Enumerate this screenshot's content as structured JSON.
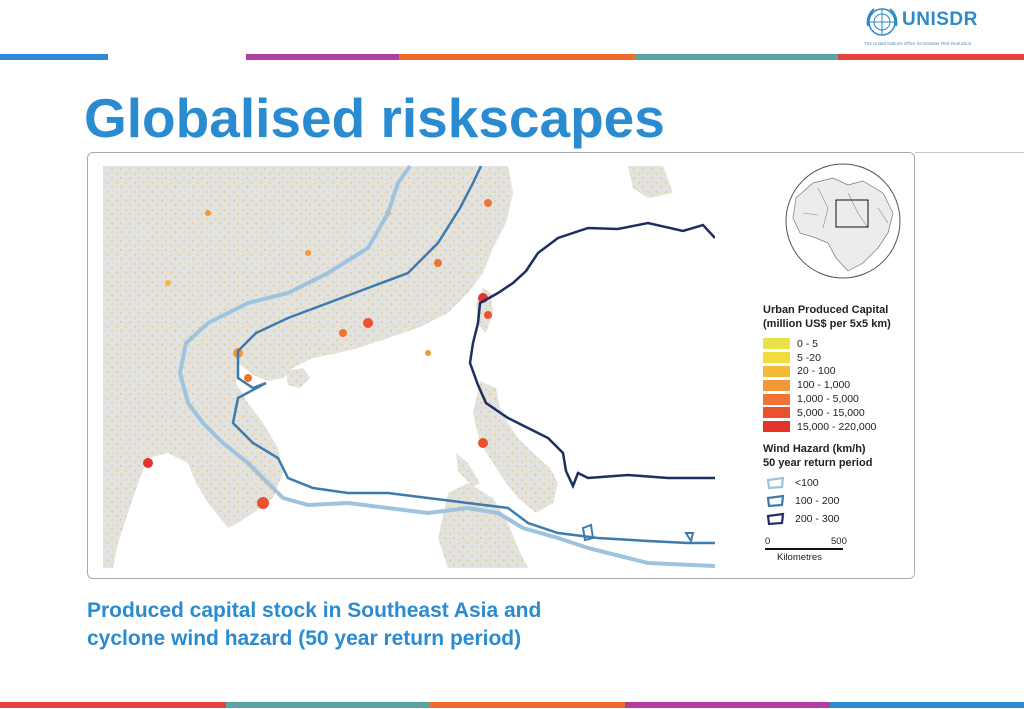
{
  "header": {
    "logo_text": "UNISDR",
    "logo_subtitle": "The United Nations Office for Disaster Risk Reduction",
    "stripe_colors": [
      "#2f8ad3",
      "#b13ea0",
      "#ef6a2c",
      "#5ba4a4",
      "#e8403c"
    ]
  },
  "slide": {
    "title": "Globalised riskscapes",
    "caption_line1": "Produced capital stock in Southeast Asia and",
    "caption_line2": "cyclone wind hazard (50 year return period)"
  },
  "map": {
    "region": "Southeast Asia",
    "legend": {
      "capital_title_line1": "Urban Produced Capital",
      "capital_title_line2": "(million US$ per 5x5 km)",
      "capital_classes": [
        {
          "label": "0 - 5",
          "color": "#e9e14a"
        },
        {
          "label": "5 -20",
          "color": "#f1dc3c"
        },
        {
          "label": "20 - 100",
          "color": "#f5b93a"
        },
        {
          "label": "100 - 1,000",
          "color": "#f39738"
        },
        {
          "label": "1,000 - 5,000",
          "color": "#ef7433"
        },
        {
          "label": "5,000 - 15,000",
          "color": "#ea512f"
        },
        {
          "label": "15,000 - 220,000",
          "color": "#e2342c"
        }
      ],
      "wind_title_line1": "Wind Hazard (km/h)",
      "wind_title_line2": "50 year return period",
      "wind_classes": [
        {
          "label": "<100",
          "color": "#9dc3de"
        },
        {
          "label": "100 - 200",
          "color": "#3c7bad"
        },
        {
          "label": "200 - 300",
          "color": "#1c2f5e"
        }
      ],
      "scale_min": "0",
      "scale_max": "500",
      "scale_unit": "Kilometres"
    }
  }
}
